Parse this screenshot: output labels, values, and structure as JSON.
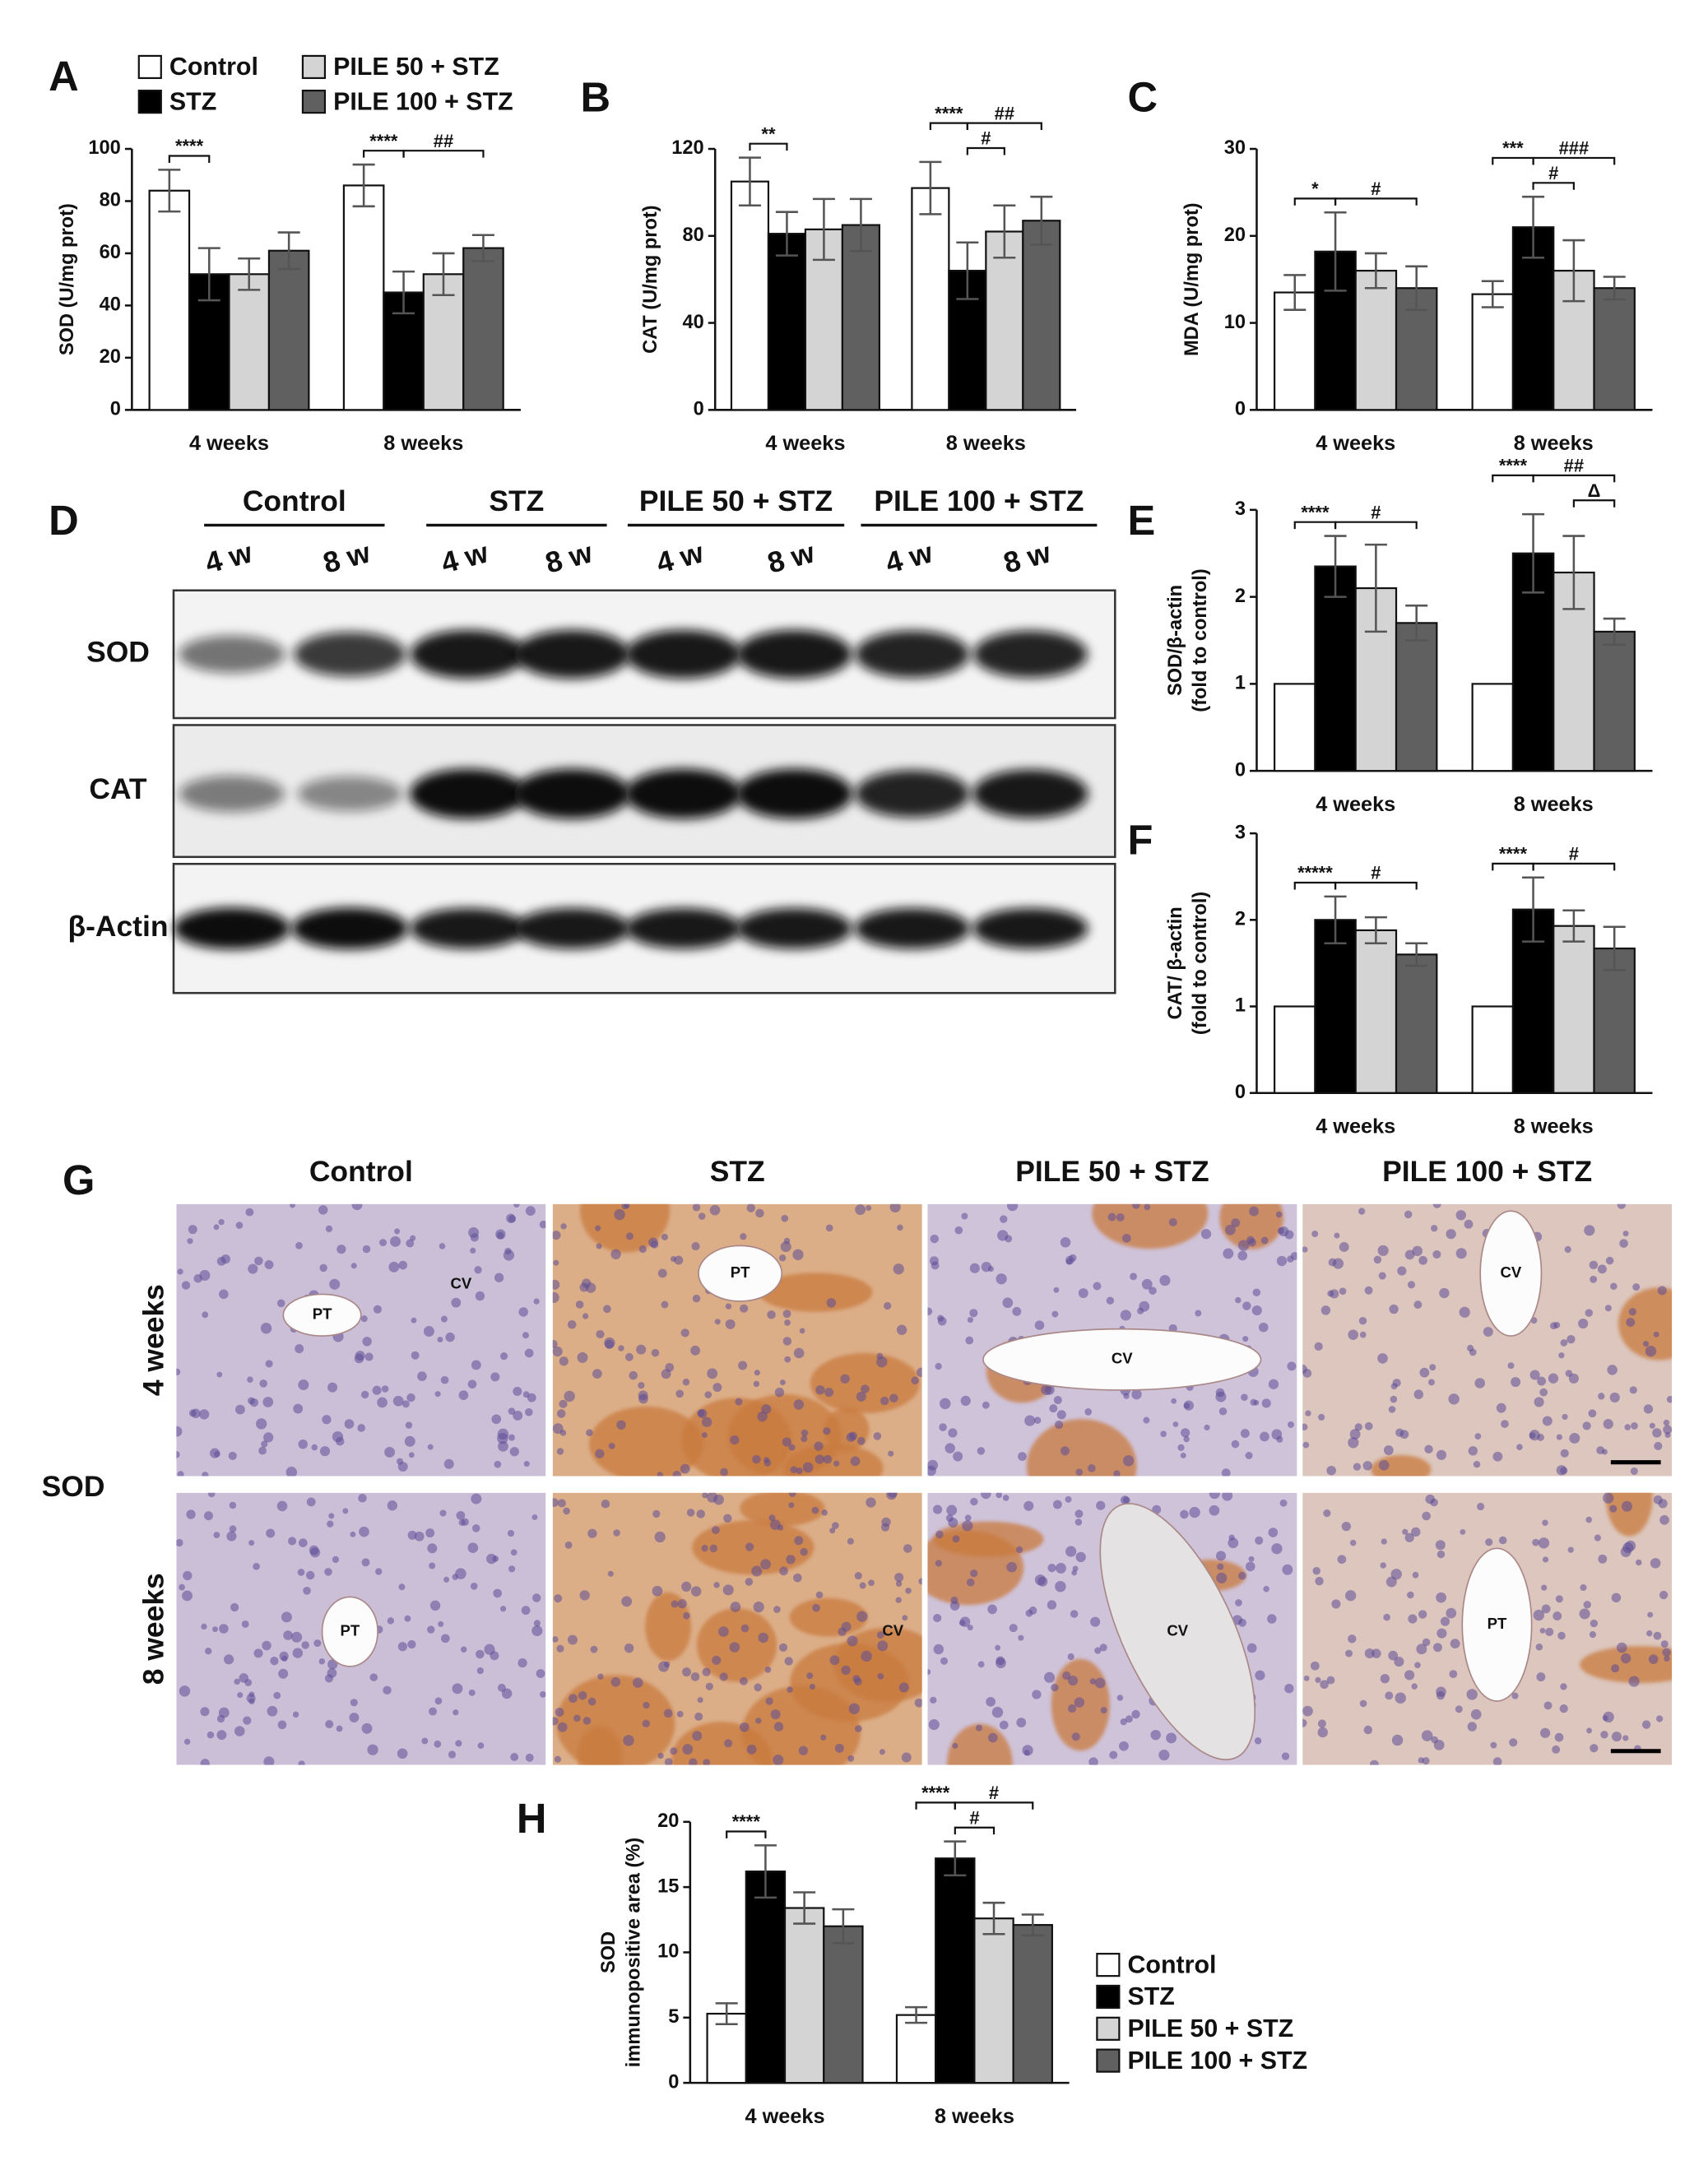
{
  "chart_data": [
    {
      "type": "bar",
      "panel": "A",
      "y_label": "SOD (U/mg prot)",
      "categories": [
        "4 weeks",
        "8 weeks"
      ],
      "series": [
        {
          "name": "Control",
          "color": "#ffffff",
          "values": [
            84,
            86
          ],
          "errors": [
            8,
            8
          ]
        },
        {
          "name": "STZ",
          "color": "#000000",
          "values": [
            52,
            45
          ],
          "errors": [
            10,
            8
          ]
        },
        {
          "name": "PILE 50 + STZ",
          "color": "#d4d4d4",
          "values": [
            52,
            52
          ],
          "errors": [
            6,
            8
          ]
        },
        {
          "name": "PILE 100 + STZ",
          "color": "#606060",
          "values": [
            61,
            62
          ],
          "errors": [
            7,
            5
          ]
        }
      ],
      "ylim": [
        0,
        100
      ],
      "yticks": [
        0,
        20,
        40,
        60,
        80,
        100
      ],
      "grid": false,
      "legend": "top",
      "annotations": [
        "****",
        "****",
        "##"
      ]
    },
    {
      "type": "bar",
      "panel": "B",
      "y_label": "CAT (U/mg prot)",
      "categories": [
        "4 weeks",
        "8 weeks"
      ],
      "series": [
        {
          "color": "#ffffff",
          "values": [
            105,
            102
          ],
          "errors": [
            11,
            12
          ]
        },
        {
          "color": "#000000",
          "values": [
            81,
            64
          ],
          "errors": [
            10,
            13
          ]
        },
        {
          "color": "#d4d4d4",
          "values": [
            83,
            82
          ],
          "errors": [
            14,
            12
          ]
        },
        {
          "color": "#606060",
          "values": [
            85,
            87
          ],
          "errors": [
            12,
            11
          ]
        }
      ],
      "ylim": [
        0,
        120
      ],
      "yticks": [
        0,
        40,
        80,
        120
      ],
      "grid": false,
      "annotations": [
        "**",
        "****",
        "##",
        "#"
      ]
    },
    {
      "type": "bar",
      "panel": "C",
      "y_label": "MDA (U/mg prot)",
      "categories": [
        "4 weeks",
        "8 weeks"
      ],
      "series": [
        {
          "color": "#ffffff",
          "values": [
            13.5,
            13.3
          ],
          "errors": [
            2,
            1.5
          ]
        },
        {
          "color": "#000000",
          "values": [
            18.2,
            21
          ],
          "errors": [
            4.5,
            3.5
          ]
        },
        {
          "color": "#d4d4d4",
          "values": [
            16,
            16
          ],
          "errors": [
            2,
            3.5
          ]
        },
        {
          "color": "#606060",
          "values": [
            14,
            14
          ],
          "errors": [
            2.5,
            1.3
          ]
        }
      ],
      "ylim": [
        0,
        30
      ],
      "yticks": [
        0,
        10,
        20,
        30
      ],
      "grid": false,
      "annotations": [
        "*",
        "#",
        "***",
        "###",
        "#"
      ]
    },
    {
      "type": "bar",
      "panel": "E",
      "y_label": [
        "SOD/β-actin",
        "(fold to control)"
      ],
      "categories": [
        "4 weeks",
        "8 weeks"
      ],
      "series": [
        {
          "color": "#ffffff",
          "values": [
            1,
            1
          ]
        },
        {
          "color": "#000000",
          "values": [
            2.35,
            2.5
          ],
          "errors": [
            0.35,
            0.45
          ]
        },
        {
          "color": "#d4d4d4",
          "values": [
            2.1,
            2.28
          ],
          "errors": [
            0.5,
            0.42
          ]
        },
        {
          "color": "#606060",
          "values": [
            1.7,
            1.6
          ],
          "errors": [
            0.2,
            0.15
          ]
        }
      ],
      "ylim": [
        0,
        3
      ],
      "yticks": [
        0,
        1,
        2,
        3
      ],
      "grid": false,
      "annotations": [
        "****",
        "#",
        "****",
        "##",
        "Δ"
      ]
    },
    {
      "type": "bar",
      "panel": "F",
      "y_label": [
        "CAT/ β-actin",
        "(fold to control)"
      ],
      "categories": [
        "4 weeks",
        "8 weeks"
      ],
      "series": [
        {
          "color": "#ffffff",
          "values": [
            1,
            1
          ]
        },
        {
          "color": "#000000",
          "values": [
            2.0,
            2.12
          ],
          "errors": [
            0.27,
            0.37
          ]
        },
        {
          "color": "#d4d4d4",
          "values": [
            1.88,
            1.93
          ],
          "errors": [
            0.15,
            0.18
          ]
        },
        {
          "color": "#606060",
          "values": [
            1.6,
            1.67
          ],
          "errors": [
            0.13,
            0.25
          ]
        }
      ],
      "ylim": [
        0,
        3
      ],
      "yticks": [
        0,
        1,
        2,
        3
      ],
      "grid": false,
      "annotations": [
        "*****",
        "#",
        "****",
        "#"
      ]
    },
    {
      "type": "bar",
      "panel": "H",
      "y_label": [
        "SOD",
        "immunopositive area (%)"
      ],
      "categories": [
        "4 weeks",
        "8 weeks"
      ],
      "series": [
        {
          "name": "Control",
          "color": "#ffffff",
          "values": [
            5.3,
            5.2
          ],
          "errors": [
            0.8,
            0.6
          ]
        },
        {
          "name": "STZ",
          "color": "#000000",
          "values": [
            16.2,
            17.2
          ],
          "errors": [
            2,
            1.3
          ]
        },
        {
          "name": "PILE 50 + STZ",
          "color": "#d4d4d4",
          "values": [
            13.4,
            12.6
          ],
          "errors": [
            1.2,
            1.2
          ]
        },
        {
          "name": "PILE 100 + STZ",
          "color": "#606060",
          "values": [
            12,
            12.1
          ],
          "errors": [
            1.3,
            0.8
          ]
        }
      ],
      "ylim": [
        0,
        20
      ],
      "yticks": [
        0,
        5,
        10,
        15,
        20
      ],
      "grid": false,
      "legend": "right",
      "annotations": [
        "****",
        "****",
        "#",
        "#"
      ]
    }
  ],
  "blot": {
    "panel": "D",
    "groups": [
      "Control",
      "STZ",
      "PILE 50 + STZ",
      "PILE 100 + STZ"
    ],
    "lanes": [
      "4 w",
      "8 w",
      "4 w",
      "8 w",
      "4 w",
      "8 w",
      "4 w",
      "8 w"
    ],
    "rows": [
      "SOD",
      "CAT",
      "β-Actin"
    ]
  },
  "histology": {
    "panel": "G",
    "columns": [
      "Control",
      "STZ",
      "PILE 50 + STZ",
      "PILE 100 + STZ"
    ],
    "rows": [
      "4 weeks",
      "8 weeks"
    ],
    "marker": "SOD",
    "vessel_labels": [
      [
        [
          "PT",
          "CV"
        ],
        [
          "PT"
        ],
        [
          "CV"
        ],
        [
          "CV"
        ]
      ],
      [
        [
          "PT"
        ],
        [
          "CV"
        ],
        [
          "CV"
        ],
        [
          "PT"
        ]
      ]
    ]
  }
}
